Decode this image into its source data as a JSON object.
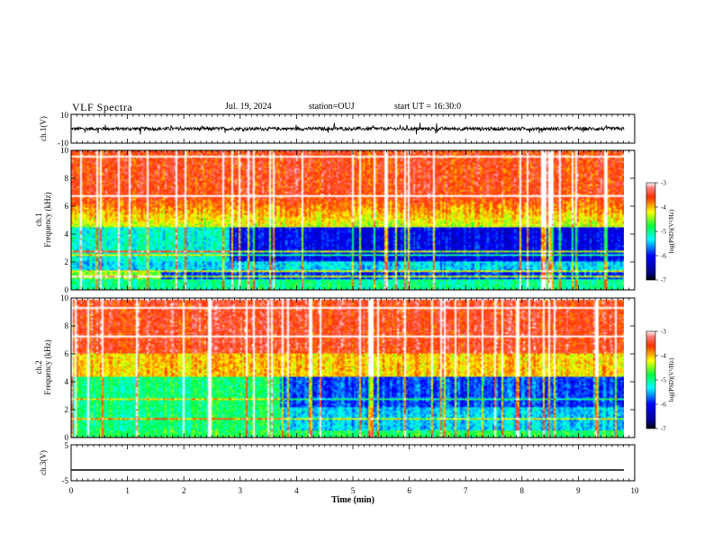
{
  "header": {
    "title": "VLF Spectra",
    "date": "Jul. 19, 2024",
    "station": "station=OUJ",
    "start_ut": "start UT = 16:30:0"
  },
  "chart_data": [
    {
      "type": "line",
      "panel": "ch1-waveform",
      "ylabel": "ch.1(V)",
      "ylim": [
        -10,
        10
      ],
      "yticks": [
        "10",
        "-10"
      ],
      "xlim": [
        0,
        10
      ],
      "baseline": 0,
      "description_values": {
        "typical_amplitude_V": 1.2,
        "spike_amplitude_V": 3
      }
    },
    {
      "type": "heatmap",
      "panel": "ch1-spectrogram",
      "ylabel_top": "ch.1",
      "ylabel": "Frequency (kHz)",
      "ylim": [
        0,
        10
      ],
      "yticks": [
        "0",
        "2",
        "4",
        "6",
        "8",
        "10"
      ],
      "xlim": [
        0,
        10
      ],
      "colorbar": {
        "label": "log(PSD)(V²/Hz)",
        "range": [
          -7,
          -3
        ],
        "ticks": [
          "-3",
          "-4",
          "-5",
          "-6",
          "-7"
        ]
      }
    },
    {
      "type": "heatmap",
      "panel": "ch2-spectrogram",
      "ylabel_top": "ch.2",
      "ylabel": "Frequency (kHz)",
      "ylim": [
        0,
        10
      ],
      "yticks": [
        "0",
        "2",
        "4",
        "6",
        "8",
        "10"
      ],
      "xlim": [
        0,
        10
      ],
      "colorbar": {
        "label": "log(PSD)(V²/Hz)",
        "range": [
          -7,
          -3
        ],
        "ticks": [
          "-3",
          "-4",
          "-5",
          "-6",
          "-7"
        ]
      }
    },
    {
      "type": "line",
      "panel": "ch3-waveform",
      "ylabel": "ch.3(V)",
      "ylim": [
        -5,
        5
      ],
      "yticks": [
        "5",
        "-5"
      ],
      "xlim": [
        0,
        10
      ],
      "constant_value": -2,
      "xlabel": "Time (min)",
      "xticks": [
        "0",
        "1",
        "2",
        "3",
        "4",
        "5",
        "6",
        "7",
        "8",
        "9",
        "10"
      ]
    }
  ]
}
